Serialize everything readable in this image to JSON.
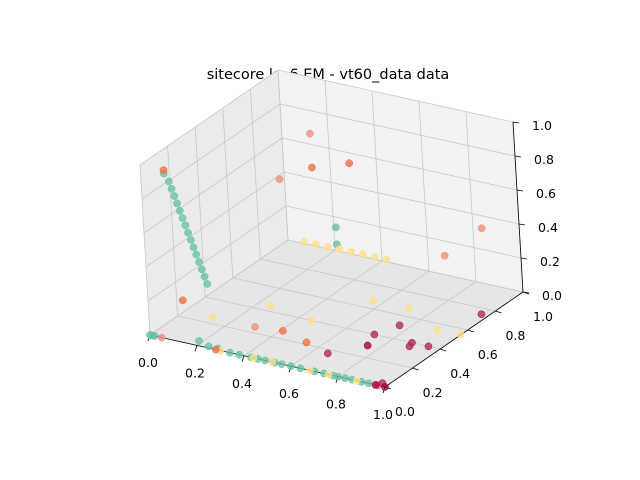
{
  "chart_data": {
    "type": "scatter",
    "projection": "3d",
    "title": "sitecore k=6 EM - vt60_data data",
    "xlim": [
      0,
      1
    ],
    "ylim": [
      0,
      1
    ],
    "zlim": [
      0,
      1
    ],
    "xticks": [
      "0.0",
      "0.2",
      "0.4",
      "0.6",
      "0.8",
      "1.0"
    ],
    "yticks": [
      "0.0",
      "0.2",
      "0.4",
      "0.6",
      "0.8",
      "1.0"
    ],
    "zticks": [
      "0.0",
      "0.2",
      "0.4",
      "0.6",
      "0.8",
      "1.0"
    ],
    "grid": true,
    "legend": "none",
    "colors": {
      "pane_back": "#f2f2f2",
      "pane_side": "#ebebeb",
      "pane_floor": "#e6e6e6",
      "grid": "#c8c8c8",
      "teal": "#66c2a5",
      "yellow": "#fee08b",
      "orange": "#f46d43",
      "salmon": "#f0907a",
      "crimson": "#b0245a",
      "maroon": "#9e0142"
    },
    "series": [
      {
        "color_key": "teal",
        "points": [
          [
            0.1,
            0,
            0.98
          ],
          [
            0.12,
            0,
            0.94
          ],
          [
            0.13,
            0,
            0.9
          ],
          [
            0.14,
            0,
            0.86
          ],
          [
            0.15,
            0,
            0.82
          ],
          [
            0.16,
            0,
            0.78
          ],
          [
            0.17,
            0,
            0.74
          ],
          [
            0.18,
            0,
            0.7
          ],
          [
            0.19,
            0,
            0.66
          ],
          [
            0.2,
            0,
            0.62
          ],
          [
            0.21,
            0,
            0.58
          ],
          [
            0.22,
            0,
            0.54
          ],
          [
            0.23,
            0,
            0.5
          ],
          [
            0.24,
            0,
            0.46
          ],
          [
            0.25,
            0,
            0.42
          ],
          [
            0.26,
            0,
            0.38
          ],
          [
            0,
            0,
            0
          ],
          [
            0.01,
            0,
            0
          ],
          [
            0.02,
            0,
            0
          ],
          [
            0.21,
            0,
            0.03
          ],
          [
            0.25,
            0,
            0.01
          ],
          [
            0.29,
            0,
            0.01
          ],
          [
            0.34,
            0,
            0
          ],
          [
            0.38,
            0,
            0
          ],
          [
            0.43,
            0,
            0
          ],
          [
            0.46,
            0,
            0
          ],
          [
            0.49,
            0,
            0
          ],
          [
            0.53,
            0,
            0
          ],
          [
            0.56,
            0,
            0
          ],
          [
            0.6,
            0,
            0
          ],
          [
            0.64,
            0,
            0
          ],
          [
            0.7,
            0,
            0
          ],
          [
            0.74,
            0,
            0
          ],
          [
            0.78,
            0,
            0
          ],
          [
            0.8,
            0,
            0
          ],
          [
            0.83,
            0,
            0
          ],
          [
            0.86,
            0,
            0
          ],
          [
            0.9,
            0,
            0
          ],
          [
            0.93,
            0,
            0
          ],
          [
            0.55,
            0.45,
            0.45
          ],
          [
            0.55,
            0.45,
            0.55
          ]
        ]
      },
      {
        "color_key": "yellow",
        "points": [
          [
            0.12,
            0.25,
            0.0
          ],
          [
            0.25,
            0.45,
            0.0
          ],
          [
            0.45,
            0.4,
            0.0
          ],
          [
            0.6,
            0.6,
            0.05
          ],
          [
            0.75,
            0.6,
            0.05
          ],
          [
            0.9,
            0.55,
            0.0
          ],
          [
            1.0,
            0.55,
            0.0
          ],
          [
            0.1,
            0.95,
            0.05
          ],
          [
            0.15,
            0.95,
            0.05
          ],
          [
            0.2,
            0.95,
            0.05
          ],
          [
            0.25,
            0.95,
            0.05
          ],
          [
            0.3,
            0.95,
            0.05
          ],
          [
            0.35,
            0.95,
            0.05
          ],
          [
            0.4,
            0.95,
            0.05
          ],
          [
            0.45,
            0.95,
            0.05
          ],
          [
            0.3,
            0,
            0
          ],
          [
            0.44,
            0,
            0
          ],
          [
            0.52,
            0,
            0
          ],
          [
            0.68,
            0,
            0
          ],
          [
            0.76,
            0,
            0
          ],
          [
            0.88,
            0,
            0
          ],
          [
            0.96,
            0,
            0
          ]
        ]
      },
      {
        "color_key": "orange",
        "points": [
          [
            0.1,
            0,
            1.0
          ],
          [
            0.15,
            0,
            0.25
          ],
          [
            0.28,
            0,
            0
          ],
          [
            0.45,
            0.2,
            0.05
          ],
          [
            0.58,
            0.15,
            0.05
          ],
          [
            0.5,
            0.65,
            0.8
          ],
          [
            0.4,
            0.55,
            0.8
          ],
          [
            0.97,
            0,
            0
          ]
        ]
      },
      {
        "color_key": "salmon",
        "points": [
          [
            0.4,
            0.55,
            1.0
          ],
          [
            0.35,
            0.4,
            0.8
          ],
          [
            0.95,
            0.55,
            0.45
          ],
          [
            0.3,
            0.25,
            0.0
          ],
          [
            0.9,
            0.9,
            0.4
          ],
          [
            0.05,
            0,
            0
          ]
        ]
      },
      {
        "color_key": "crimson",
        "points": [
          [
            0.72,
            0.4,
            0.0
          ],
          [
            0.8,
            0.45,
            0.05
          ],
          [
            0.88,
            0.4,
            0.0
          ],
          [
            0.95,
            0.4,
            0.0
          ],
          [
            0.93,
            0.3,
            0.05
          ],
          [
            0.7,
            0.1,
            0.05
          ],
          [
            0.97,
            0.75,
            0.0
          ],
          [
            0.99,
            0,
            0.02
          ]
        ]
      },
      {
        "color_key": "maroon",
        "points": [
          [
            0.75,
            0.3,
            0.0
          ],
          [
            1.0,
            0,
            0.0
          ],
          [
            0.96,
            0,
            0.0
          ]
        ]
      }
    ]
  }
}
